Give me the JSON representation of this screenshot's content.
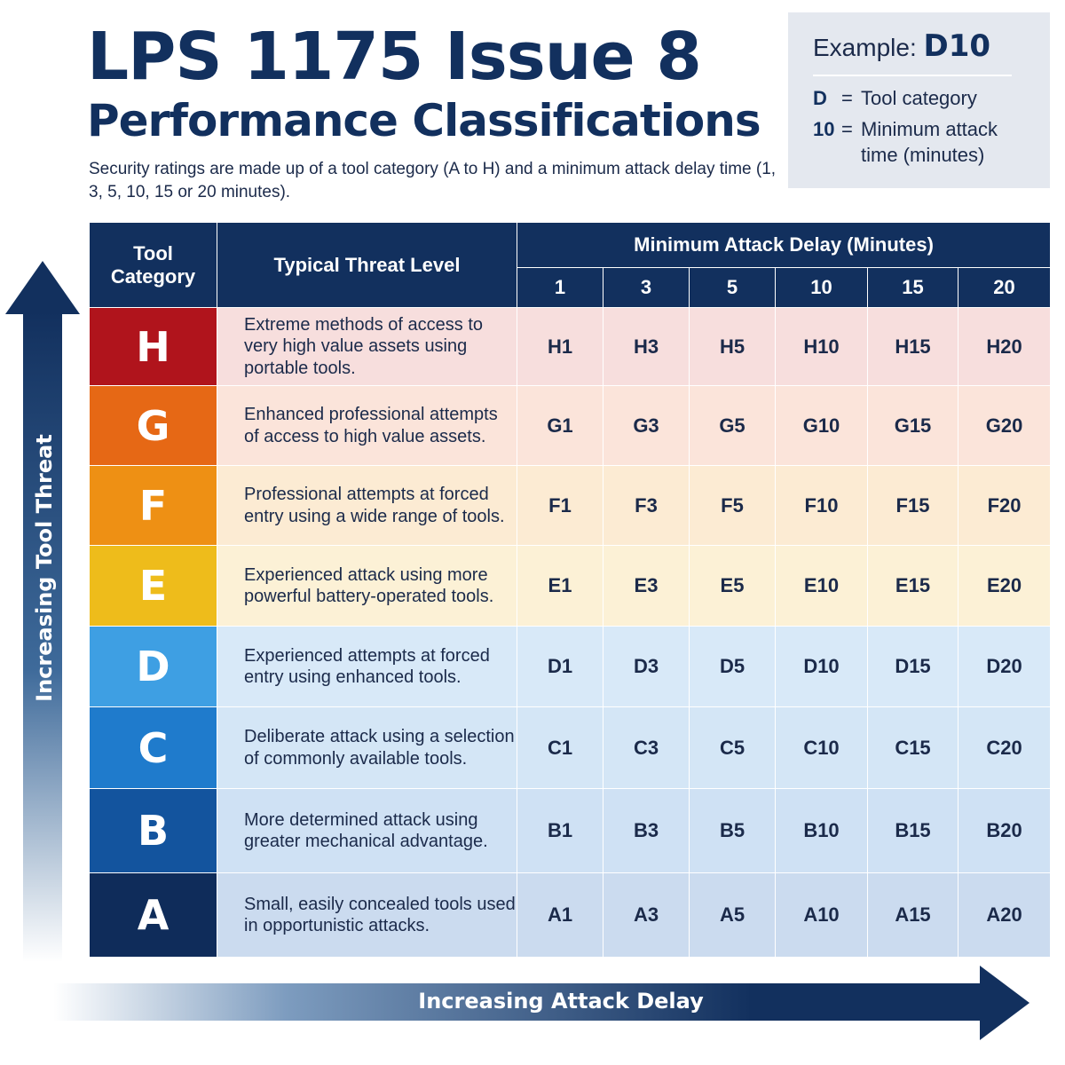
{
  "title": {
    "line1": "LPS 1175 Issue 8",
    "line2": "Performance Classifications"
  },
  "subtitle": "Security ratings are made up of a tool category (A to H) and a minimum attack delay time (1, 3, 5, 10, 15 or 20 minutes).",
  "example": {
    "label": "Example:",
    "code": "D10",
    "rows": [
      {
        "key": "D",
        "eq": "=",
        "value": "Tool category"
      },
      {
        "key": "10",
        "eq": "=",
        "value": "Minimum attack time (minutes)"
      }
    ]
  },
  "table": {
    "col_tool": "Tool Category",
    "col_threat": "Typical Threat Level",
    "col_delay": "Minimum Attack Delay (Minutes)",
    "delays": [
      "1",
      "3",
      "5",
      "10",
      "15",
      "20"
    ],
    "rows": [
      {
        "cat": "H",
        "color": "#b0141c",
        "bg": "#f7dedd",
        "threat": "Extreme methods of access to very high value assets using portable tools.",
        "cells": [
          "H1",
          "H3",
          "H5",
          "H10",
          "H15",
          "H20"
        ]
      },
      {
        "cat": "G",
        "color": "#e66815",
        "bg": "#fbe4da",
        "threat": "Enhanced professional attempts of access to high value assets.",
        "cells": [
          "G1",
          "G3",
          "G5",
          "G10",
          "G15",
          "G20"
        ]
      },
      {
        "cat": "F",
        "color": "#ee9014",
        "bg": "#fcebd3",
        "threat": "Professional attempts at forced entry using a wide range of tools.",
        "cells": [
          "F1",
          "F3",
          "F5",
          "F10",
          "F15",
          "F20"
        ]
      },
      {
        "cat": "E",
        "color": "#eebc1b",
        "bg": "#fcf1d6",
        "threat": "Experienced attack using more powerful battery-operated tools.",
        "cells": [
          "E1",
          "E3",
          "E5",
          "E10",
          "E15",
          "E20"
        ]
      },
      {
        "cat": "D",
        "color": "#3e9fe3",
        "bg": "#d8e9f8",
        "threat": "Experienced attempts at forced entry using enhanced tools.",
        "cells": [
          "D1",
          "D3",
          "D5",
          "D10",
          "D15",
          "D20"
        ]
      },
      {
        "cat": "C",
        "color": "#1f7bcc",
        "bg": "#d4e6f6",
        "threat": "Deliberate attack using a selection of commonly available tools.",
        "cells": [
          "C1",
          "C3",
          "C5",
          "C10",
          "C15",
          "C20"
        ]
      },
      {
        "cat": "B",
        "color": "#13549e",
        "bg": "#cfe1f4",
        "threat": "More determined attack using greater mechanical advantage.",
        "cells": [
          "B1",
          "B3",
          "B5",
          "B10",
          "B15",
          "B20"
        ]
      },
      {
        "cat": "A",
        "color": "#0f2c5a",
        "bg": "#cbdbef",
        "threat": "Small, easily concealed tools used in opportunistic attacks.",
        "cells": [
          "A1",
          "A3",
          "A5",
          "A10",
          "A15",
          "A20"
        ]
      }
    ]
  },
  "axes": {
    "vertical": "Increasing Tool Threat",
    "horizontal": "Increasing Attack Delay"
  }
}
